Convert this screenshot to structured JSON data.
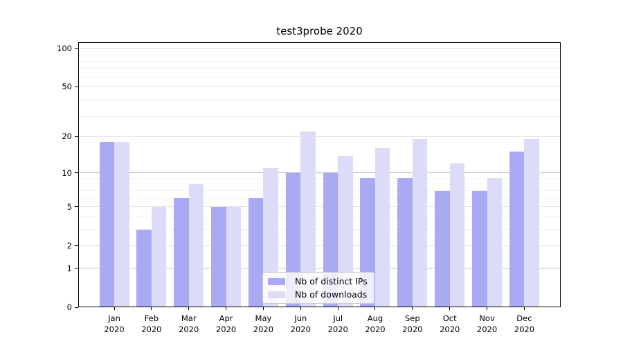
{
  "chart_data": {
    "type": "bar",
    "title": "test3probe 2020",
    "categories": [
      "Jan 2020",
      "Feb 2020",
      "Mar 2020",
      "Apr 2020",
      "May 2020",
      "Jun 2020",
      "Jul 2020",
      "Aug 2020",
      "Sep 2020",
      "Oct 2020",
      "Nov 2020",
      "Dec 2020"
    ],
    "series": [
      {
        "name": "Nb of distinct IPs",
        "color": "#a9a9f4",
        "values": [
          18,
          3,
          6,
          5,
          6,
          10,
          10,
          9,
          9,
          7,
          7,
          15
        ]
      },
      {
        "name": "Nb of downloads",
        "color": "#dcdcf8",
        "values": [
          18,
          5,
          8,
          5,
          11,
          22,
          14,
          16,
          19,
          12,
          9,
          19
        ]
      }
    ],
    "yscale": "log1p",
    "yticks": [
      0,
      1,
      2,
      5,
      10,
      20,
      50,
      100
    ],
    "minor_gridlines": [
      3,
      4,
      6,
      7,
      8,
      9,
      29,
      39,
      59,
      69,
      79,
      89
    ],
    "emphasized_gridlines": [
      1,
      10
    ],
    "ylim": [
      0,
      112
    ],
    "grid": true,
    "legend_position": "lower center",
    "appearance": {
      "grid_color_minor": "#f1f1f1",
      "grid_color_major": "#e3e3e3",
      "grid_color_emphasis": "#c4c4c4",
      "axis_color": "#000000",
      "legend_border": "#cccccc"
    }
  }
}
